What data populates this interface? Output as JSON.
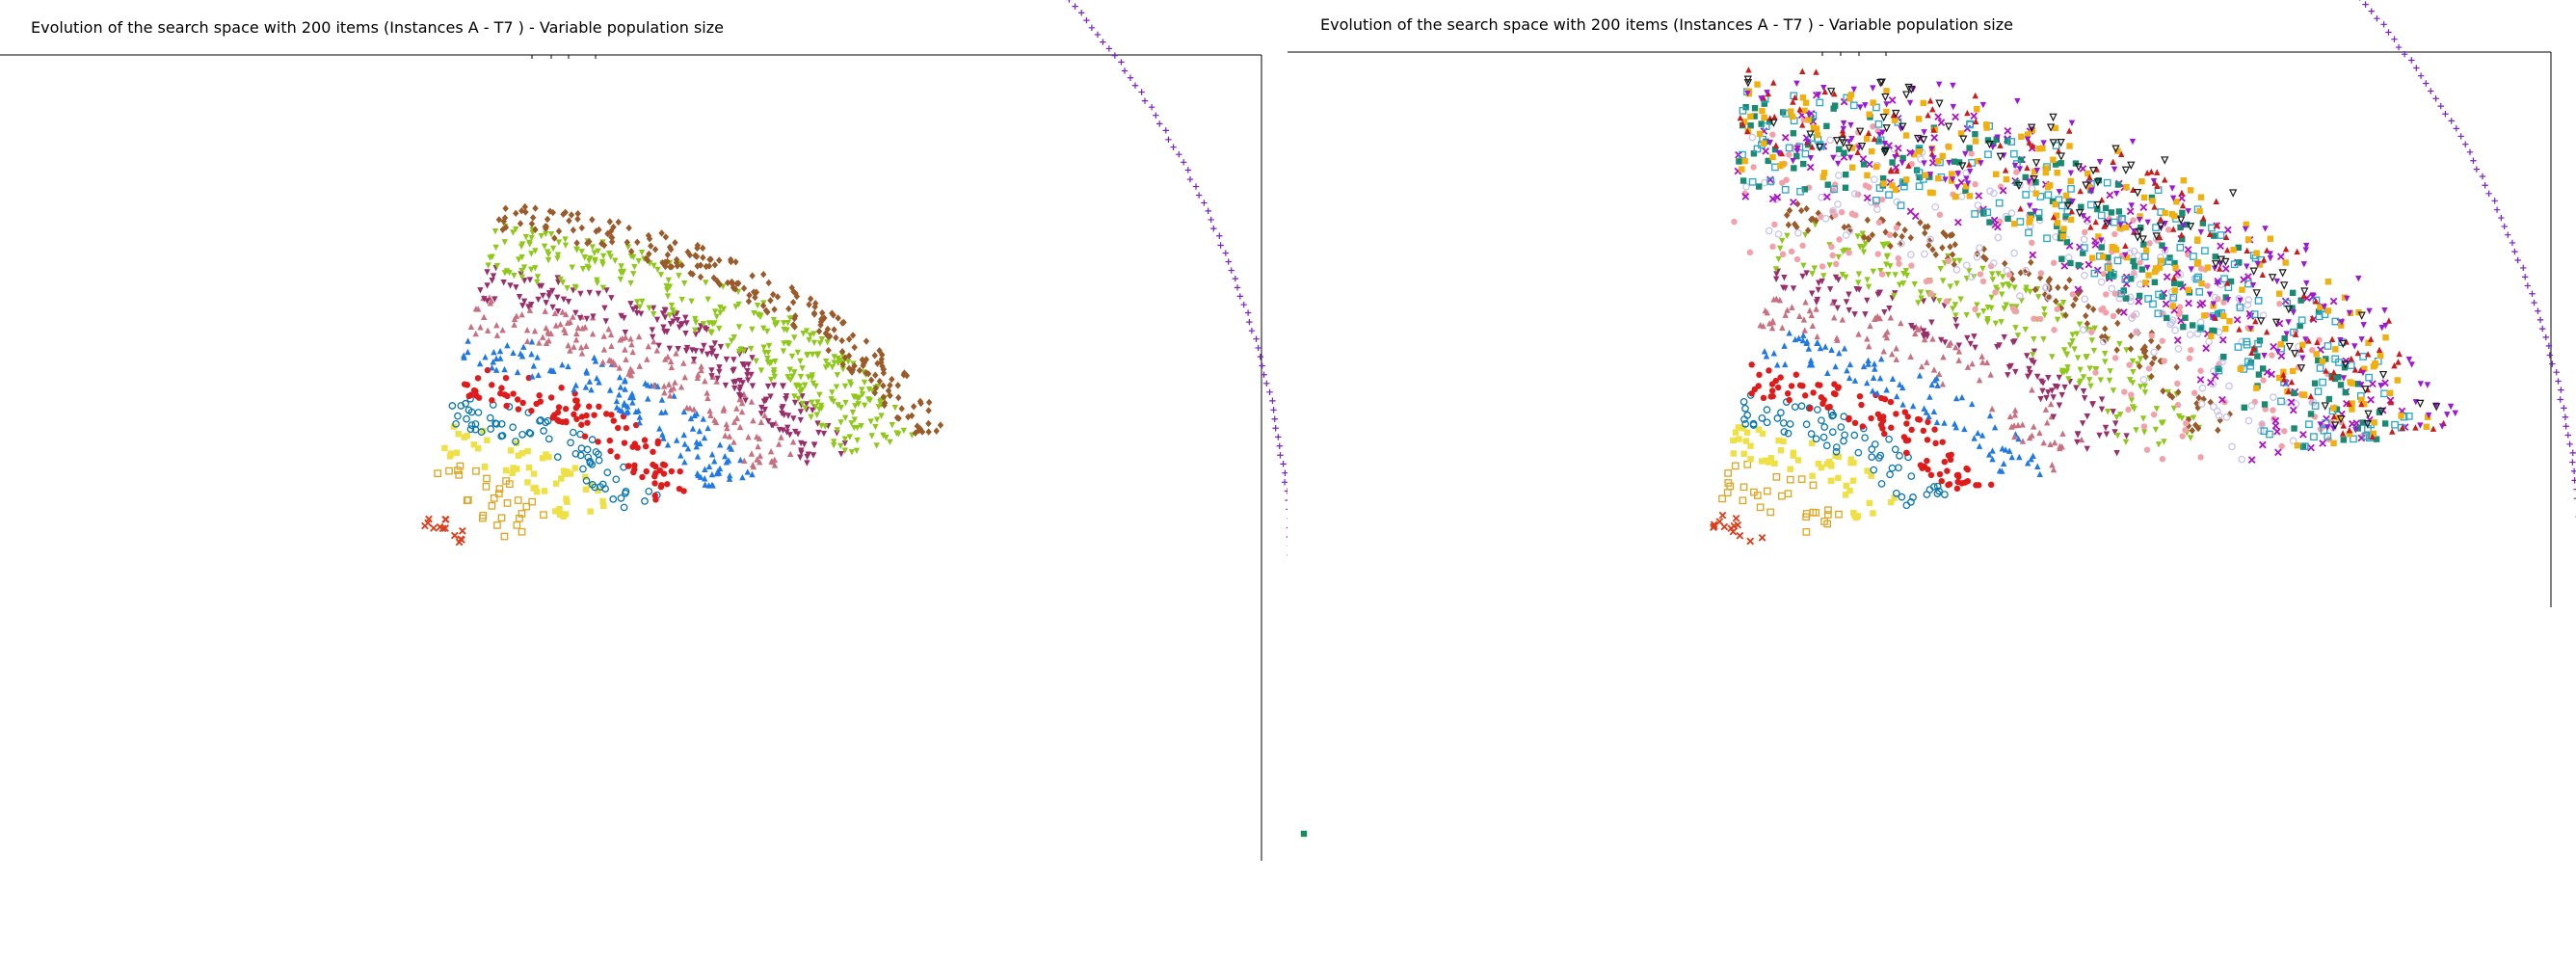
{
  "chart_data": [
    {
      "type": "scatter",
      "title": "Evolution of the search space with 200 items (Instances A - T7 ) - Variable population size",
      "grid": false,
      "legend": "none",
      "series": [
        {
          "marker": "plus",
          "color": "#7a1fc9",
          "kind": "ring",
          "ring": [
            17
          ],
          "n": 150
        },
        {
          "marker": "x",
          "color": "#e03d1a",
          "kind": "band",
          "ring": [
            1,
            1.5
          ],
          "n": 14
        },
        {
          "marker": "hollow-square",
          "color": "#e0a420",
          "kind": "band",
          "ring": [
            2,
            3.4
          ],
          "n": 30
        },
        {
          "marker": "square",
          "color": "#eee045",
          "kind": "band",
          "ring": [
            3.4,
            4.6
          ],
          "n": 55
        },
        {
          "marker": "hollow-circle",
          "color": "#0a77b0",
          "kind": "band",
          "ring": [
            4.5,
            5.6
          ],
          "n": 70
        },
        {
          "marker": "circle",
          "color": "#e01b1b",
          "kind": "band",
          "ring": [
            5.5,
            6.6
          ],
          "n": 100
        },
        {
          "marker": "triangle",
          "color": "#1f78e6",
          "kind": "band",
          "ring": [
            6.6,
            7.8
          ],
          "n": 130
        },
        {
          "marker": "triangle",
          "color": "#c97080",
          "kind": "band",
          "ring": [
            7.7,
            9
          ],
          "n": 160
        },
        {
          "marker": "triangle-down",
          "color": "#9a2e6b",
          "kind": "band",
          "ring": [
            8.8,
            10
          ],
          "n": 190
        },
        {
          "marker": "triangle-down",
          "color": "#8ec91a",
          "kind": "band",
          "ring": [
            9.7,
            11.5
          ],
          "n": 320
        },
        {
          "marker": "diamond",
          "color": "#9a5a2a",
          "kind": "band",
          "ring": [
            11.2,
            12.2
          ],
          "n": 230
        }
      ]
    },
    {
      "type": "scatter",
      "title": "Evolution of the search space with 200 items (Instances A - T7 ) - Variable population size",
      "grid": false,
      "legend": "none",
      "series": [
        {
          "marker": "plus",
          "color": "#7a1fc9",
          "kind": "ring",
          "ring": [
            17
          ],
          "n": 150
        },
        {
          "marker": "x",
          "color": "#e03d1a",
          "kind": "band",
          "ring": [
            1,
            1.5
          ],
          "n": 14
        },
        {
          "marker": "hollow-square",
          "color": "#e0a420",
          "kind": "band",
          "ring": [
            2,
            3.4
          ],
          "n": 30
        },
        {
          "marker": "square",
          "color": "#eee045",
          "kind": "band",
          "ring": [
            3.4,
            4.6
          ],
          "n": 55
        },
        {
          "marker": "hollow-circle",
          "color": "#0a77b0",
          "kind": "band",
          "ring": [
            4.5,
            5.6
          ],
          "n": 70
        },
        {
          "marker": "circle",
          "color": "#e01b1b",
          "kind": "band",
          "ring": [
            5.5,
            6.6
          ],
          "n": 100
        },
        {
          "marker": "triangle",
          "color": "#1f78e6",
          "kind": "band",
          "ring": [
            6.6,
            7.8
          ],
          "n": 90
        },
        {
          "marker": "triangle",
          "color": "#c97080",
          "kind": "band",
          "ring": [
            7.7,
            9
          ],
          "n": 100
        },
        {
          "marker": "triangle-down",
          "color": "#9a2e6b",
          "kind": "band",
          "ring": [
            8.8,
            10
          ],
          "n": 110
        },
        {
          "marker": "triangle-down",
          "color": "#8ec91a",
          "kind": "band",
          "ring": [
            9.7,
            11.5
          ],
          "n": 200
        },
        {
          "marker": "diamond",
          "color": "#9a5a2a",
          "kind": "band",
          "ring": [
            11.2,
            12.2
          ],
          "n": 130
        },
        {
          "marker": "circle",
          "color": "#f4a0a8",
          "kind": "cloud",
          "ring": [
            10,
            15
          ],
          "n": 180
        },
        {
          "marker": "hollow-circle",
          "color": "#c8c4ee",
          "kind": "cloud",
          "ring": [
            11,
            14.5
          ],
          "n": 140
        },
        {
          "marker": "x",
          "color": "#b012c8",
          "kind": "cloud",
          "ring": [
            12,
            16
          ],
          "n": 160
        },
        {
          "marker": "square",
          "color": "#1a8a72",
          "kind": "cloud",
          "ring": [
            12.5,
            15.5
          ],
          "n": 170
        },
        {
          "marker": "hollow-square",
          "color": "#2aa6c8",
          "kind": "cloud",
          "ring": [
            12.5,
            15.8
          ],
          "n": 170
        },
        {
          "marker": "square",
          "color": "#f0b010",
          "kind": "cloud",
          "ring": [
            13,
            16.3
          ],
          "n": 200
        },
        {
          "marker": "triangle",
          "color": "#cc1b1b",
          "kind": "cloud",
          "ring": [
            13.5,
            16.6
          ],
          "n": 140
        },
        {
          "marker": "triangle-down",
          "color": "#9a18d6",
          "kind": "cloud",
          "ring": [
            13.5,
            16.8
          ],
          "n": 160
        },
        {
          "marker": "hollow-triangle-down",
          "color": "#1a1a1a",
          "kind": "cloud",
          "ring": [
            14,
            16.7
          ],
          "n": 90
        },
        {
          "marker": "square",
          "color": "#1a8a5a",
          "kind": "single",
          "ring": [
            0.2,
            0.2
          ],
          "n": 1
        }
      ]
    }
  ]
}
